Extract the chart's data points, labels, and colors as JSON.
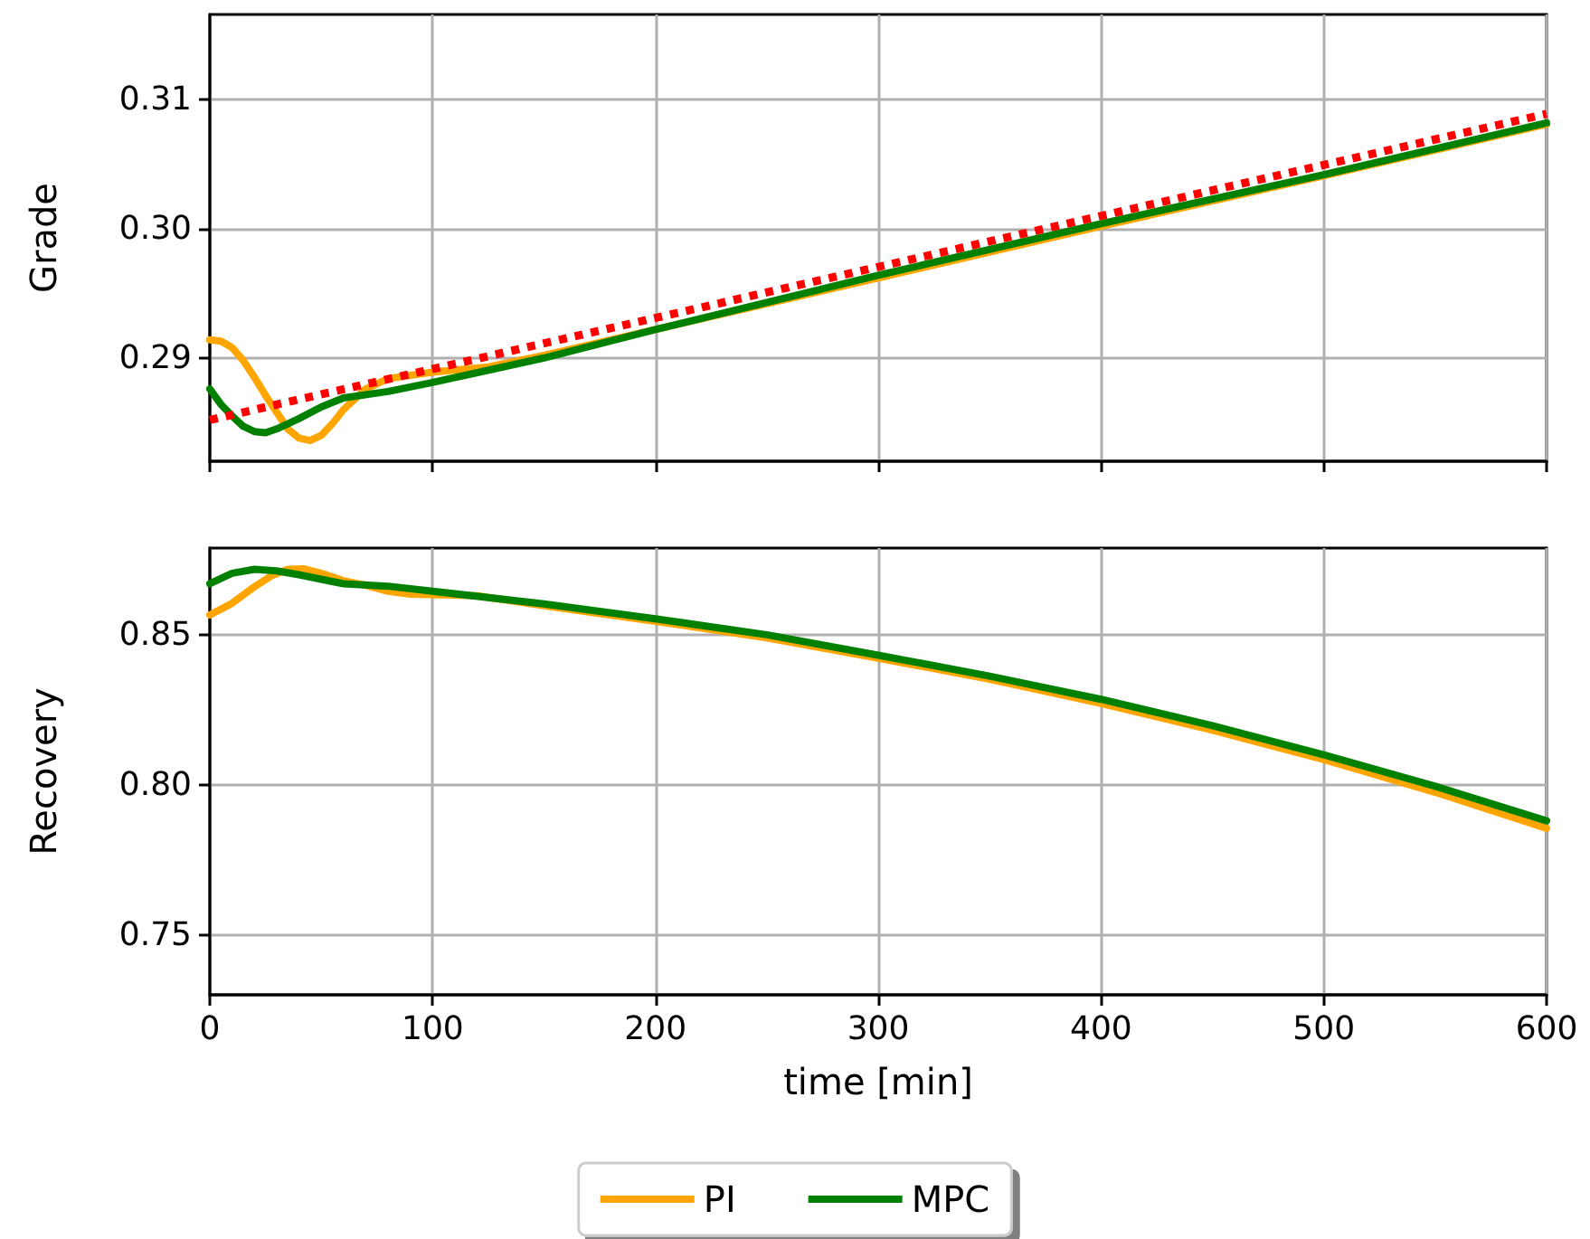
{
  "chart_data": [
    {
      "type": "line",
      "ylabel": "Grade",
      "xlim": [
        0,
        600
      ],
      "xticks": [
        0,
        100,
        200,
        300,
        400,
        500,
        600
      ],
      "ylim": [
        0.282,
        0.3166
      ],
      "yticks": [
        0.29,
        {
          "value": 0.3,
          "label": "0.30"
        },
        0.31
      ],
      "grid": true,
      "tick_labels": "y",
      "series": [
        {
          "color": "#ffa500",
          "x": [
            0,
            5,
            10,
            15,
            20,
            25,
            30,
            35,
            40,
            45,
            50,
            55,
            60,
            70,
            80,
            100,
            125,
            150,
            200,
            300,
            400,
            500,
            600
          ],
          "values": [
            0.2914,
            0.2913,
            0.2908,
            0.2898,
            0.2885,
            0.2871,
            0.2858,
            0.2845,
            0.2838,
            0.2836,
            0.284,
            0.2849,
            0.286,
            0.2876,
            0.2884,
            0.2889,
            0.2893,
            0.2902,
            0.2922,
            0.2962,
            0.3002,
            0.3041,
            0.3081
          ]
        },
        {
          "color": "#008000",
          "x": [
            0,
            5,
            10,
            15,
            20,
            25,
            30,
            35,
            40,
            50,
            60,
            80,
            100,
            150,
            200,
            300,
            400,
            500,
            600
          ],
          "values": [
            0.2876,
            0.2864,
            0.2855,
            0.2847,
            0.2843,
            0.2842,
            0.2845,
            0.2849,
            0.2853,
            0.2862,
            0.2869,
            0.2874,
            0.2881,
            0.29,
            0.2922,
            0.2964,
            0.3004,
            0.3042,
            0.3082
          ]
        },
        {
          "color": "#ff0000",
          "line_style": "dotted",
          "x": [
            0,
            600
          ],
          "values": [
            0.2852,
            0.3089
          ]
        }
      ]
    },
    {
      "type": "line",
      "xlabel": "time [min]",
      "ylabel": "Recovery",
      "xlim": [
        0,
        600
      ],
      "xticks": [
        0,
        100,
        200,
        300,
        400,
        500,
        600
      ],
      "ylim": [
        0.73,
        0.8789
      ],
      "yticks": [
        0.75,
        {
          "value": 0.8,
          "label": "0.80"
        },
        0.85
      ],
      "grid": true,
      "legend": "bottom",
      "series": [
        {
          "name": "PI",
          "color": "#ffa500",
          "x": [
            0,
            10,
            20,
            28,
            35,
            42,
            50,
            60,
            70,
            80,
            90,
            120,
            150,
            200,
            250,
            300,
            350,
            400,
            450,
            500,
            550,
            600
          ],
          "values": [
            0.8566,
            0.8605,
            0.866,
            0.8698,
            0.8718,
            0.872,
            0.8705,
            0.868,
            0.8665,
            0.8645,
            0.8635,
            0.863,
            0.8597,
            0.8545,
            0.849,
            0.8422,
            0.8352,
            0.8271,
            0.8182,
            0.8084,
            0.7975,
            0.7855
          ]
        },
        {
          "name": "MPC",
          "color": "#008000",
          "x": [
            0,
            10,
            20,
            30,
            40,
            50,
            60,
            80,
            100,
            150,
            200,
            250,
            300,
            350,
            400,
            450,
            500,
            550,
            600
          ],
          "values": [
            0.867,
            0.8705,
            0.8718,
            0.8713,
            0.87,
            0.8685,
            0.867,
            0.8662,
            0.8645,
            0.8603,
            0.8553,
            0.85,
            0.8432,
            0.8362,
            0.8285,
            0.8197,
            0.81,
            0.7995,
            0.788
          ]
        }
      ]
    }
  ]
}
